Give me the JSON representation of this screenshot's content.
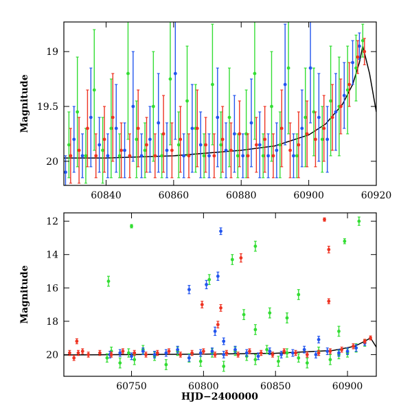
{
  "chart_data": [
    {
      "type": "scatter",
      "panel": "top",
      "xlabel": "",
      "ylabel": "Magnitude",
      "xlim": [
        60827.5,
        60920
      ],
      "ylim": [
        20.22,
        18.73
      ],
      "y_inverted": true,
      "x_ticks": [
        "60840",
        "60860",
        "60880",
        "60900",
        "60920"
      ],
      "y_ticks": [
        "19",
        "19.5",
        "20"
      ],
      "curve": {
        "color": "#000000",
        "x": [
          60827.5,
          60840,
          60860,
          60880,
          60890,
          60900,
          60905,
          60910,
          60913,
          60915,
          60916,
          60918,
          60920
        ],
        "y": [
          19.97,
          19.97,
          19.95,
          19.9,
          19.86,
          19.76,
          19.66,
          19.48,
          19.3,
          19.1,
          18.95,
          19.2,
          19.55
        ]
      },
      "series": [
        {
          "name": "",
          "color": "#33dd33",
          "x": [
            60829,
            60831.5,
            60834,
            60836.5,
            60839,
            60841.5,
            60844,
            60846.5,
            60849,
            60851.5,
            60854,
            60856.5,
            60859,
            60861.5,
            60864,
            60866.5,
            60869,
            60871.5,
            60874,
            60876.5,
            60879,
            60881.5,
            60884,
            60886.5,
            60889,
            60891.5,
            60894,
            60896.5,
            60899,
            60901.5,
            60904,
            60906.5,
            60909,
            60911.5,
            60914,
            60916
          ],
          "y": [
            19.85,
            19.55,
            19.95,
            19.35,
            19.9,
            19.7,
            19.95,
            19.2,
            19.8,
            19.9,
            19.5,
            19.95,
            19.25,
            19.85,
            19.45,
            19.7,
            19.95,
            19.3,
            19.85,
            19.6,
            19.95,
            19.75,
            19.2,
            19.95,
            19.5,
            19.85,
            19.15,
            19.95,
            19.6,
            19.55,
            19.8,
            19.45,
            19.5,
            19.35,
            19.15,
            18.9
          ],
          "err": [
            0.3,
            0.5,
            0.25,
            0.55,
            0.3,
            0.45,
            0.2,
            0.6,
            0.35,
            0.25,
            0.5,
            0.2,
            0.6,
            0.3,
            0.5,
            0.4,
            0.2,
            0.55,
            0.3,
            0.45,
            0.2,
            0.4,
            0.6,
            0.2,
            0.5,
            0.3,
            0.6,
            0.2,
            0.45,
            0.4,
            0.3,
            0.5,
            0.45,
            0.4,
            0.3,
            0.15
          ]
        },
        {
          "name": "",
          "color": "#2255ee",
          "x": [
            60828,
            60830.5,
            60833,
            60835.5,
            60838,
            60840.5,
            60843,
            60845.5,
            60848,
            60850.5,
            60853,
            60855.5,
            60858,
            60860.5,
            60863,
            60865.5,
            60868,
            60870.5,
            60873,
            60875.5,
            60878,
            60880.5,
            60883,
            60885.5,
            60888,
            60890.5,
            60893,
            60895.5,
            60898,
            60900.5,
            60903,
            60905.5,
            60908,
            60910.5,
            60913,
            60915
          ],
          "y": [
            20.1,
            19.8,
            19.95,
            19.6,
            19.85,
            19.95,
            19.7,
            19.9,
            19.5,
            19.95,
            19.8,
            19.65,
            19.9,
            19.2,
            19.95,
            19.7,
            19.85,
            19.95,
            19.6,
            19.9,
            19.75,
            19.95,
            19.65,
            19.85,
            19.95,
            19.9,
            19.3,
            19.95,
            19.7,
            19.15,
            19.6,
            19.8,
            19.55,
            19.4,
            19.1,
            18.95
          ],
          "err": [
            0.15,
            0.3,
            0.2,
            0.45,
            0.25,
            0.2,
            0.4,
            0.25,
            0.5,
            0.2,
            0.3,
            0.45,
            0.25,
            0.6,
            0.2,
            0.4,
            0.3,
            0.2,
            0.45,
            0.25,
            0.35,
            0.2,
            0.4,
            0.3,
            0.2,
            0.25,
            0.55,
            0.2,
            0.35,
            0.5,
            0.4,
            0.3,
            0.35,
            0.3,
            0.2,
            0.12
          ]
        },
        {
          "name": "",
          "color": "#ee3322",
          "x": [
            60829.5,
            60832,
            60834.5,
            60837,
            60839.5,
            60842,
            60844.5,
            60847,
            60849.5,
            60852,
            60854.5,
            60857,
            60859.5,
            60862,
            60864.5,
            60867,
            60869.5,
            60872,
            60874.5,
            60877,
            60879.5,
            60882,
            60884.5,
            60887,
            60889.5,
            60892,
            60894.5,
            60897,
            60899.5,
            60902,
            60904.5,
            60907,
            60909.5,
            60912,
            60914.5,
            60916.5
          ],
          "y": [
            19.95,
            19.9,
            19.7,
            19.95,
            19.8,
            19.6,
            19.9,
            19.95,
            19.7,
            19.85,
            19.95,
            19.75,
            19.9,
            19.8,
            19.95,
            19.7,
            19.85,
            19.95,
            19.8,
            19.9,
            19.75,
            19.95,
            19.85,
            19.8,
            19.95,
            19.7,
            19.9,
            19.85,
            19.75,
            19.8,
            19.7,
            19.6,
            19.5,
            19.3,
            19.05,
            19.0
          ],
          "err": [
            0.25,
            0.3,
            0.35,
            0.2,
            0.3,
            0.4,
            0.25,
            0.2,
            0.35,
            0.25,
            0.2,
            0.35,
            0.25,
            0.3,
            0.2,
            0.35,
            0.25,
            0.2,
            0.3,
            0.25,
            0.3,
            0.2,
            0.25,
            0.3,
            0.2,
            0.35,
            0.25,
            0.3,
            0.3,
            0.25,
            0.3,
            0.3,
            0.25,
            0.2,
            0.15,
            0.12
          ]
        }
      ]
    },
    {
      "type": "scatter",
      "panel": "bottom",
      "xlabel": "HJD−2400000",
      "ylabel": "Magnitude",
      "xlim": [
        60703,
        60920
      ],
      "ylim": [
        21.3,
        11.5
      ],
      "y_inverted": true,
      "x_ticks": [
        "60750",
        "60800",
        "60850",
        "60900"
      ],
      "y_ticks": [
        "12",
        "14",
        "16",
        "18",
        "20"
      ],
      "curve": {
        "color": "#000000",
        "x": [
          60703,
          60750,
          60800,
          60850,
          60890,
          60905,
          60912,
          60916,
          60920
        ],
        "y": [
          20.02,
          20.0,
          19.97,
          19.92,
          19.75,
          19.5,
          19.2,
          19.0,
          19.55
        ]
      },
      "series": [
        {
          "name": "",
          "color": "#33dd33",
          "x": [
            60733,
            60736,
            60742,
            60748,
            60752,
            60758,
            60766,
            60774,
            60782,
            60790,
            60798,
            60806,
            60814,
            60822,
            60830,
            60836,
            60844,
            60852,
            60858,
            60866,
            60872,
            60880,
            60888,
            60894,
            60900,
            60906,
            60912,
            60750,
            60734,
            60804,
            60820,
            60836,
            60828,
            60846,
            60858,
            60866,
            60894,
            60898,
            60908,
            60836
          ],
          "y": [
            20.2,
            19.8,
            20.5,
            19.9,
            20.3,
            19.7,
            20.1,
            20.6,
            19.8,
            20.2,
            20.4,
            19.9,
            20.7,
            19.8,
            20.1,
            20.3,
            19.7,
            20.4,
            19.9,
            20.2,
            20.5,
            19.8,
            20.3,
            20.0,
            19.9,
            19.6,
            19.3,
            12.3,
            15.6,
            15.5,
            14.3,
            13.5,
            17.6,
            17.5,
            17.8,
            16.4,
            18.6,
            13.2,
            12.0,
            18.5
          ],
          "err": [
            0.25,
            0.25,
            0.3,
            0.25,
            0.3,
            0.25,
            0.25,
            0.3,
            0.25,
            0.25,
            0.3,
            0.25,
            0.3,
            0.25,
            0.25,
            0.3,
            0.25,
            0.3,
            0.25,
            0.25,
            0.3,
            0.25,
            0.3,
            0.25,
            0.25,
            0.25,
            0.2,
            0.1,
            0.3,
            0.3,
            0.3,
            0.3,
            0.3,
            0.3,
            0.3,
            0.3,
            0.3,
            0.15,
            0.25,
            0.3
          ]
        },
        {
          "name": "",
          "color": "#2255ee",
          "x": [
            60735,
            60742,
            60750,
            60758,
            60766,
            60774,
            60782,
            60790,
            60798,
            60806,
            60814,
            60822,
            60830,
            60838,
            60846,
            60854,
            60862,
            60870,
            60878,
            60886,
            60894,
            60900,
            60906,
            60912,
            60790,
            60802,
            60810,
            60812,
            60808,
            60814,
            60880
          ],
          "y": [
            20.0,
            19.9,
            20.1,
            19.8,
            20.0,
            19.9,
            19.7,
            20.2,
            19.9,
            19.8,
            20.0,
            19.7,
            19.9,
            20.1,
            19.8,
            20.0,
            19.9,
            19.7,
            20.0,
            19.8,
            19.9,
            19.8,
            19.6,
            19.3,
            16.1,
            15.8,
            15.3,
            12.6,
            18.6,
            19.2,
            19.1
          ],
          "err": [
            0.2,
            0.2,
            0.2,
            0.2,
            0.2,
            0.2,
            0.2,
            0.2,
            0.2,
            0.2,
            0.2,
            0.2,
            0.2,
            0.2,
            0.2,
            0.2,
            0.2,
            0.2,
            0.2,
            0.2,
            0.2,
            0.2,
            0.2,
            0.15,
            0.25,
            0.25,
            0.25,
            0.2,
            0.25,
            0.2,
            0.2
          ]
        },
        {
          "name": "",
          "color": "#ee3322",
          "x": [
            60707,
            60710,
            60713,
            60716,
            60720,
            60728,
            60736,
            60744,
            60752,
            60760,
            60768,
            60776,
            60784,
            60792,
            60800,
            60808,
            60816,
            60824,
            60832,
            60840,
            60848,
            60856,
            60864,
            60872,
            60880,
            60888,
            60896,
            60904,
            60912,
            60916,
            60712,
            60799,
            60810,
            60812,
            60826,
            60884,
            60887,
            60887
          ],
          "y": [
            19.9,
            20.2,
            19.9,
            19.8,
            20.0,
            19.9,
            20.0,
            19.8,
            19.9,
            20.0,
            19.9,
            19.8,
            20.0,
            19.9,
            19.8,
            20.0,
            19.9,
            20.0,
            19.8,
            19.9,
            20.0,
            19.8,
            19.9,
            20.0,
            19.9,
            19.8,
            19.7,
            19.5,
            19.2,
            19.0,
            19.2,
            17.0,
            18.2,
            17.2,
            14.2,
            11.9,
            13.7,
            16.8
          ],
          "err": [
            0.15,
            0.15,
            0.15,
            0.15,
            0.15,
            0.15,
            0.15,
            0.15,
            0.15,
            0.15,
            0.15,
            0.15,
            0.15,
            0.15,
            0.15,
            0.15,
            0.15,
            0.15,
            0.15,
            0.15,
            0.15,
            0.15,
            0.15,
            0.15,
            0.15,
            0.15,
            0.15,
            0.15,
            0.12,
            0.12,
            0.15,
            0.2,
            0.2,
            0.2,
            0.25,
            0.1,
            0.2,
            0.15
          ]
        }
      ]
    }
  ]
}
